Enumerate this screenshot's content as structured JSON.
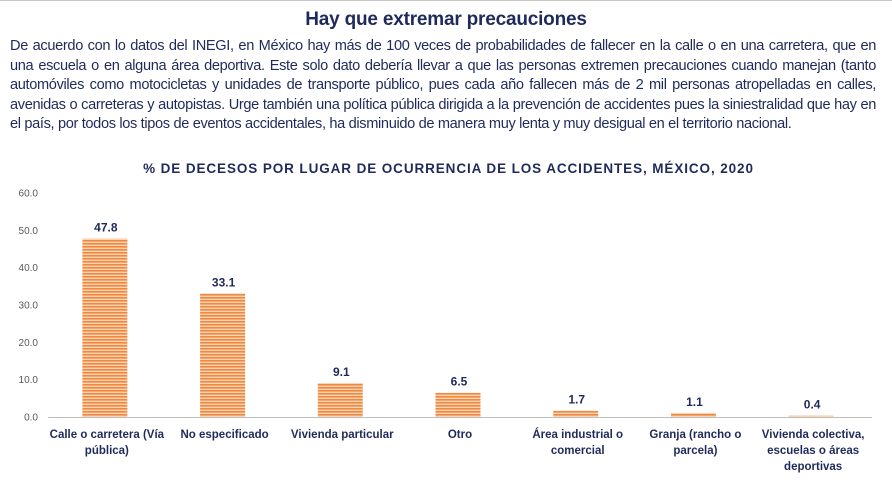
{
  "header": {
    "title": "Hay que extremar precauciones",
    "paragraph": "De acuerdo con lo datos del INEGI, en México hay más de 100 veces de probabilidades de fallecer en la calle o en una carretera, que en una escuela o en alguna área deportiva. Este solo dato debería llevar a que las personas extremen precauciones cuando manejan (tanto automóviles como motocicletas y unidades de transporte público, pues cada año fallecen más de 2 mil personas atropelladas en calles, avenidas o carreteras y autopistas. Urge también una política pública dirigida a la prevención de accidentes pues la siniestralidad que hay en el país, por todos los tipos de eventos accidentales, ha disminuido de manera muy lenta y muy desigual en el territorio nacional."
  },
  "colors": {
    "text": "#1f2a5a",
    "bar": "#f0a468",
    "bar_stripe": "#e8782e",
    "axis": "#bfbfbf",
    "tick_text": "#595959"
  },
  "chart_data": {
    "type": "bar",
    "title": "% DE DECESOS POR LUGAR DE OCURRENCIA DE LOS ACCIDENTES,  MÉXICO, 2020",
    "xlabel": "",
    "ylabel": "",
    "ylim": [
      0,
      60
    ],
    "yticks": [
      "0.0",
      "10.0",
      "20.0",
      "30.0",
      "40.0",
      "50.0",
      "60.0"
    ],
    "ytick_values": [
      0,
      10,
      20,
      30,
      40,
      50,
      60
    ],
    "grid": false,
    "legend": "none",
    "categories": [
      [
        "Calle o carretera (Vía",
        "pública)"
      ],
      [
        "No especificado"
      ],
      [
        "Vivienda particular"
      ],
      [
        "Otro"
      ],
      [
        "Área industrial o",
        "comercial"
      ],
      [
        "Granja (rancho o",
        "parcela)"
      ],
      [
        "Vivienda colectiva,",
        "escuelas o áreas",
        "deportivas"
      ]
    ],
    "values": [
      47.8,
      33.1,
      9.1,
      6.5,
      1.7,
      1.1,
      0.4
    ],
    "data_labels": [
      "47.8",
      "33.1",
      "9.1",
      "6.5",
      "1.7",
      "1.1",
      "0.4"
    ]
  }
}
